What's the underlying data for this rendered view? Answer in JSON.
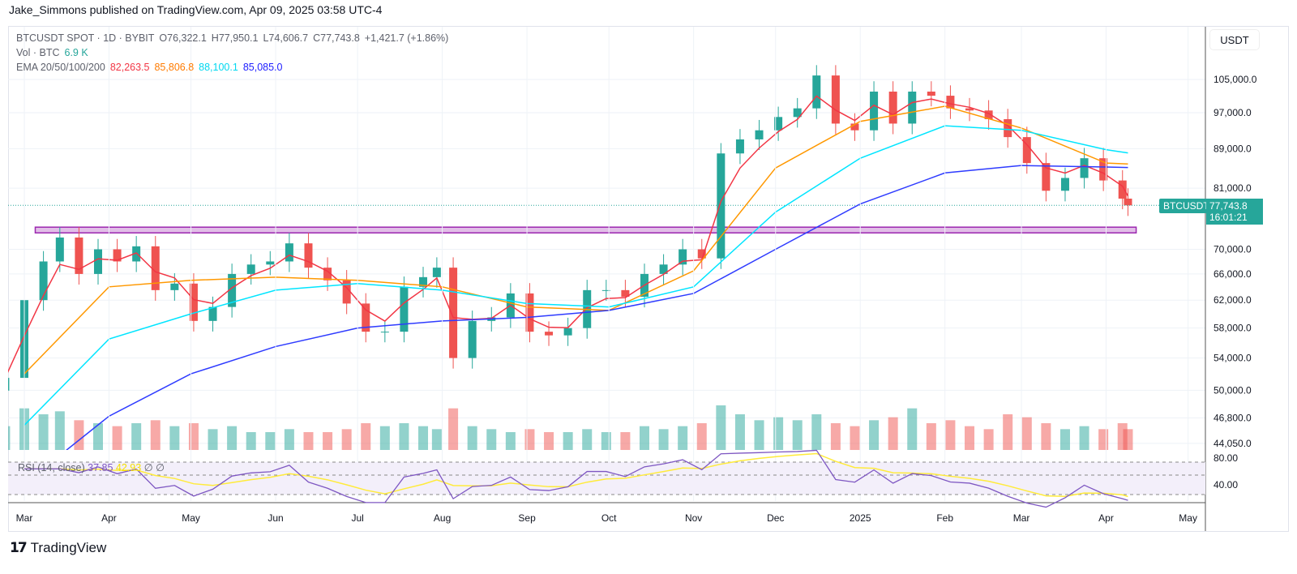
{
  "publisher": "Jake_Simmons published on TradingView.com, Apr 09, 2025 03:58 UTC-4",
  "legend": {
    "symbol": "BTCUSDT SPOT · 1D · BYBIT",
    "open": "O76,322.1",
    "high": "H77,950.1",
    "low": "L74,606.7",
    "close": "C77,743.8",
    "change": "+1,421.7 (+1.86%)",
    "vol_label": "Vol · BTC",
    "vol_value": "6.9 K",
    "ema_label": "EMA 20/50/100/200",
    "ema20": "82,263.5",
    "ema50": "85,806.8",
    "ema100": "88,100.1",
    "ema200": "85,085.0"
  },
  "rsi_legend": {
    "label": "RSI (14, close)",
    "rsi": "37.85",
    "ma": "42.93",
    "na1": "∅",
    "na2": "∅"
  },
  "currency": "USDT",
  "last_price": {
    "symbol": "BTCUSDT",
    "price": "77,743.8",
    "countdown": "16:01:21"
  },
  "footer": {
    "brand": "TradingView"
  },
  "colors": {
    "up": "#26a69a",
    "down": "#ef5350",
    "ema20": "#f23645",
    "ema50": "#ff9800",
    "ema100": "#00e5ff",
    "ema200": "#2e3bff",
    "rsi": "#7e57c2",
    "rsi_ma": "#ffeb3b",
    "support_zone": "#c77ddb",
    "channel": "#131722"
  },
  "chart_data": {
    "type": "candlestick",
    "scale": "log",
    "ylim": [
      44050,
      112000
    ],
    "y_ticks": [
      "105,000.0",
      "97,000.0",
      "89,000.0",
      "81,000.0",
      "70,000.0",
      "66,000.0",
      "62,000.0",
      "58,000.0",
      "54,000.0",
      "50,000.0",
      "46,800.0",
      "44,050.0"
    ],
    "y_tick_values": [
      105000,
      97000,
      89000,
      81000,
      70000,
      66000,
      62000,
      58000,
      54000,
      50000,
      46800,
      44050
    ],
    "rsi_ticks": [
      "80.00",
      "40.00"
    ],
    "x_ticks": [
      [
        "2024-03-01",
        "Mar"
      ],
      [
        "2024-04-01",
        "Apr"
      ],
      [
        "2024-05-01",
        "May"
      ],
      [
        "2024-06-01",
        "Jun"
      ],
      [
        "2024-07-01",
        "Jul"
      ],
      [
        "2024-08-01",
        "Aug"
      ],
      [
        "2024-09-01",
        "Sep"
      ],
      [
        "2024-10-01",
        "Oct"
      ],
      [
        "2024-11-01",
        "Nov"
      ],
      [
        "2024-12-01",
        "Dec"
      ],
      [
        "2025-01-01",
        "2025"
      ],
      [
        "2025-02-01",
        "Feb"
      ],
      [
        "2025-03-01",
        "Mar"
      ],
      [
        "2025-04-01",
        "Apr"
      ],
      [
        "2025-05-01",
        "May"
      ]
    ],
    "start_date": "2024-02-23",
    "closes": [
      [
        51500,
        "2024-02-23"
      ],
      [
        62000,
        "2024-03-01"
      ],
      [
        68000,
        "2024-03-08"
      ],
      [
        72000,
        "2024-03-14"
      ],
      [
        66000,
        "2024-03-21"
      ],
      [
        70000,
        "2024-03-28"
      ],
      [
        68000,
        "2024-04-04"
      ],
      [
        70500,
        "2024-04-11"
      ],
      [
        63500,
        "2024-04-18"
      ],
      [
        64500,
        "2024-04-25"
      ],
      [
        59000,
        "2024-05-02"
      ],
      [
        61000,
        "2024-05-09"
      ],
      [
        66000,
        "2024-05-16"
      ],
      [
        67500,
        "2024-05-23"
      ],
      [
        68000,
        "2024-05-30"
      ],
      [
        71000,
        "2024-06-06"
      ],
      [
        67000,
        "2024-06-13"
      ],
      [
        65000,
        "2024-06-20"
      ],
      [
        61500,
        "2024-06-27"
      ],
      [
        57500,
        "2024-07-04"
      ],
      [
        57500,
        "2024-07-11"
      ],
      [
        64000,
        "2024-07-18"
      ],
      [
        65500,
        "2024-07-25"
      ],
      [
        67000,
        "2024-07-30"
      ],
      [
        54000,
        "2024-08-05"
      ],
      [
        59000,
        "2024-08-12"
      ],
      [
        59500,
        "2024-08-19"
      ],
      [
        63000,
        "2024-08-26"
      ],
      [
        57500,
        "2024-09-02"
      ],
      [
        57000,
        "2024-09-09"
      ],
      [
        58000,
        "2024-09-16"
      ],
      [
        63500,
        "2024-09-23"
      ],
      [
        63500,
        "2024-09-30"
      ],
      [
        62500,
        "2024-10-07"
      ],
      [
        66000,
        "2024-10-14"
      ],
      [
        67500,
        "2024-10-21"
      ],
      [
        70000,
        "2024-10-28"
      ],
      [
        68500,
        "2024-11-04"
      ],
      [
        88000,
        "2024-11-11"
      ],
      [
        91000,
        "2024-11-18"
      ],
      [
        93000,
        "2024-11-25"
      ],
      [
        96000,
        "2024-12-02"
      ],
      [
        98000,
        "2024-12-09"
      ],
      [
        106000,
        "2024-12-16"
      ],
      [
        94500,
        "2024-12-23"
      ],
      [
        93000,
        "2024-12-30"
      ],
      [
        102000,
        "2025-01-06"
      ],
      [
        94500,
        "2025-01-13"
      ],
      [
        102000,
        "2025-01-20"
      ],
      [
        101000,
        "2025-01-27"
      ],
      [
        98000,
        "2025-02-03"
      ],
      [
        97500,
        "2025-02-10"
      ],
      [
        95500,
        "2025-02-17"
      ],
      [
        91500,
        "2025-02-24"
      ],
      [
        86000,
        "2025-03-03"
      ],
      [
        80500,
        "2025-03-10"
      ],
      [
        83000,
        "2025-03-17"
      ],
      [
        87000,
        "2025-03-24"
      ],
      [
        82500,
        "2025-03-31"
      ],
      [
        79000,
        "2025-04-07"
      ],
      [
        77743.8,
        "2025-04-09"
      ]
    ],
    "volume_k": [
      8,
      14,
      12,
      13,
      10,
      9,
      8,
      9,
      10,
      8,
      9,
      7,
      8,
      6,
      6,
      7,
      6,
      6,
      7,
      9,
      8,
      9,
      8,
      7,
      14,
      8,
      7,
      6,
      7,
      6,
      6,
      7,
      6,
      6,
      8,
      7,
      8,
      9,
      15,
      12,
      10,
      11,
      10,
      12,
      9,
      8,
      10,
      11,
      14,
      9,
      10,
      8,
      7,
      12,
      11,
      9,
      7,
      8,
      7,
      9,
      7
    ],
    "ema50": [
      [
        "2024-03-01",
        52000
      ],
      [
        "2024-04-01",
        64000
      ],
      [
        "2024-05-01",
        65000
      ],
      [
        "2024-06-01",
        65500
      ],
      [
        "2024-07-01",
        65000
      ],
      [
        "2024-08-01",
        64000
      ],
      [
        "2024-09-01",
        61000
      ],
      [
        "2024-10-01",
        60500
      ],
      [
        "2024-11-01",
        66500
      ],
      [
        "2024-12-01",
        85000
      ],
      [
        "2025-01-01",
        95000
      ],
      [
        "2025-02-01",
        98500
      ],
      [
        "2025-03-01",
        93500
      ],
      [
        "2025-04-01",
        86000
      ],
      [
        "2025-04-09",
        85806.8
      ]
    ],
    "ema100": [
      [
        "2024-03-01",
        46000
      ],
      [
        "2024-04-01",
        56500
      ],
      [
        "2024-05-01",
        60000
      ],
      [
        "2024-06-01",
        63500
      ],
      [
        "2024-07-01",
        64500
      ],
      [
        "2024-08-01",
        63500
      ],
      [
        "2024-09-01",
        61500
      ],
      [
        "2024-10-01",
        61000
      ],
      [
        "2024-11-01",
        64000
      ],
      [
        "2024-12-01",
        76500
      ],
      [
        "2025-01-01",
        87000
      ],
      [
        "2025-02-01",
        94000
      ],
      [
        "2025-03-01",
        93000
      ],
      [
        "2025-04-01",
        88800
      ],
      [
        "2025-04-09",
        88100.1
      ]
    ],
    "ema200": [
      [
        "2024-03-01",
        40000
      ],
      [
        "2024-04-01",
        47000
      ],
      [
        "2024-05-01",
        52000
      ],
      [
        "2024-06-01",
        55500
      ],
      [
        "2024-07-01",
        58000
      ],
      [
        "2024-08-01",
        59000
      ],
      [
        "2024-09-01",
        59500
      ],
      [
        "2024-10-01",
        60500
      ],
      [
        "2024-11-01",
        63000
      ],
      [
        "2024-12-01",
        70000
      ],
      [
        "2025-01-01",
        78000
      ],
      [
        "2025-02-01",
        84000
      ],
      [
        "2025-03-01",
        85500
      ],
      [
        "2025-04-01",
        85200
      ],
      [
        "2025-04-09",
        85085.0
      ]
    ],
    "support_zone": {
      "from": "2024-03-05",
      "to": "2025-04-12",
      "top": 73800,
      "bottom": 72800
    },
    "channel": {
      "upper": [
        [
          "2025-01-20",
          109500
        ],
        [
          "2025-04-09",
          91500
        ]
      ],
      "lower": [
        [
          "2025-01-20",
          99500
        ],
        [
          "2025-04-09",
          82700
        ]
      ]
    }
  }
}
